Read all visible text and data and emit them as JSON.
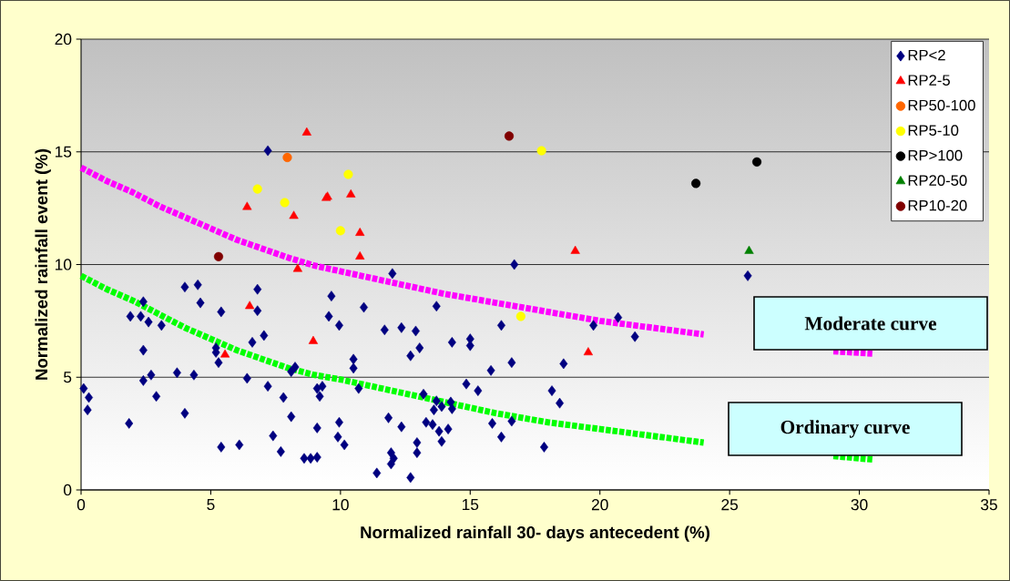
{
  "chart_data": {
    "type": "scatter",
    "xlabel": "Normalized rainfall 30- days antecedent (%)",
    "ylabel": "Normalized rainfall event (%)",
    "xlim": [
      0,
      35
    ],
    "ylim": [
      0,
      20
    ],
    "xticks": [
      0,
      5,
      10,
      15,
      20,
      25,
      30,
      35
    ],
    "yticks": [
      0,
      5,
      10,
      15,
      20
    ],
    "grid": "y",
    "legend": "top right",
    "annotations": [
      "Moderate curve",
      "Ordinary curve"
    ],
    "series": [
      {
        "name": "RP<2",
        "color": "#000080",
        "marker": "diamond",
        "x": [
          0.1,
          0.3,
          0.25,
          1.9,
          1.85,
          2.3,
          2.4,
          2.6,
          3.1,
          2.4,
          2.4,
          2.7,
          2.9,
          3.7,
          4.0,
          4.5,
          4.6,
          4.35,
          4.0,
          5.4,
          5.2,
          5.2,
          5.3,
          5.4,
          6.1,
          6.4,
          6.8,
          6.8,
          7.05,
          6.6,
          7.2,
          7.8,
          8.1,
          7.4,
          7.7,
          8.1,
          8.25,
          8.6,
          8.85,
          9.1,
          9.1,
          9.1,
          9.3,
          9.2,
          9.65,
          9.55,
          9.95,
          9.95,
          9.9,
          10.15,
          7.2,
          16.7,
          12.0,
          10.9,
          13.7,
          11.7,
          12.35,
          12.9,
          16.2,
          19.75,
          14.3,
          15.0,
          15.0,
          13.05,
          12.7,
          10.5,
          10.5,
          16.6,
          18.6,
          15.8,
          14.85,
          15.3,
          18.15,
          18.45,
          10.7,
          13.2,
          13.6,
          13.9,
          13.7,
          14.3,
          14.25,
          11.85,
          12.35,
          13.3,
          13.55,
          13.8,
          14.15,
          13.9,
          12.95,
          12.95,
          15.85,
          16.6,
          16.2,
          17.85,
          11.95,
          12.05,
          11.95,
          11.4,
          12.7,
          20.7,
          21.35,
          25.7
        ],
        "values": [
          4.5,
          4.1,
          3.55,
          7.7,
          2.95,
          7.7,
          8.35,
          7.45,
          7.3,
          6.2,
          4.85,
          5.1,
          4.15,
          5.2,
          9.0,
          9.1,
          8.3,
          5.1,
          3.4,
          7.9,
          6.3,
          6.1,
          5.65,
          1.9,
          2.0,
          4.95,
          8.9,
          7.95,
          6.85,
          6.55,
          4.6,
          4.1,
          3.25,
          2.4,
          1.7,
          5.25,
          5.45,
          1.4,
          1.4,
          1.45,
          2.75,
          4.5,
          4.6,
          4.15,
          8.6,
          7.7,
          7.3,
          3.0,
          2.35,
          2.0,
          15.05,
          10.0,
          9.6,
          8.1,
          8.15,
          7.1,
          7.2,
          7.05,
          7.3,
          7.3,
          6.55,
          6.7,
          6.4,
          6.3,
          5.95,
          5.8,
          5.4,
          5.65,
          5.6,
          5.3,
          4.7,
          4.4,
          4.4,
          3.85,
          4.5,
          4.25,
          3.55,
          3.7,
          3.95,
          3.6,
          3.9,
          3.2,
          2.8,
          3.0,
          2.9,
          2.6,
          2.7,
          2.15,
          2.1,
          1.65,
          2.95,
          3.05,
          2.35,
          1.9,
          1.65,
          1.4,
          1.15,
          0.75,
          0.55,
          7.65,
          6.8,
          9.5
        ]
      },
      {
        "name": "RP2-5",
        "color": "#ff0000",
        "marker": "triangle",
        "x": [
          8.7,
          6.4,
          8.2,
          9.45,
          9.5,
          10.4,
          10.75,
          10.75,
          8.35,
          19.05,
          6.5,
          5.55,
          8.95,
          19.55
        ],
        "values": [
          15.85,
          12.55,
          12.15,
          12.95,
          13.0,
          13.1,
          11.4,
          10.35,
          9.8,
          10.6,
          8.15,
          6.0,
          6.6,
          6.1
        ]
      },
      {
        "name": "RP50-100",
        "color": "#ff6600",
        "marker": "circle",
        "x": [
          7.95
        ],
        "values": [
          14.75
        ]
      },
      {
        "name": "RP5-10",
        "color": "#ffff00",
        "marker": "circle",
        "x": [
          6.8,
          7.85,
          10.3,
          10.0,
          17.75,
          16.95
        ],
        "values": [
          13.35,
          12.75,
          14.0,
          11.5,
          15.05,
          7.7
        ]
      },
      {
        "name": "RP>100",
        "color": "#000000",
        "marker": "circle",
        "x": [
          26.05,
          23.7
        ],
        "values": [
          14.55,
          13.6
        ]
      },
      {
        "name": "RP20-50",
        "color": "#008000",
        "marker": "triangle",
        "x": [
          25.75
        ],
        "values": [
          10.6
        ]
      },
      {
        "name": "RP10-20",
        "color": "#800000",
        "marker": "circle",
        "x": [
          16.5,
          5.3
        ],
        "values": [
          15.7,
          10.35
        ]
      },
      {
        "type": "line",
        "color": "#ff00ff",
        "line_style": "dashed",
        "x": [
          0,
          1,
          2,
          3,
          4,
          5,
          6,
          7,
          8,
          9,
          10,
          12,
          14,
          16,
          18,
          20,
          22,
          24,
          26,
          29,
          30.5
        ],
        "values": [
          14.3,
          13.7,
          13.2,
          12.6,
          12.1,
          11.6,
          11.1,
          10.7,
          10.3,
          9.95,
          9.7,
          9.2,
          8.7,
          8.3,
          7.9,
          7.5,
          7.2,
          6.9,
          null,
          6.15,
          6.05
        ]
      },
      {
        "type": "line",
        "color": "#00ff00",
        "line_style": "dashed",
        "x": [
          0,
          1,
          2,
          3,
          4,
          5,
          6,
          7,
          8,
          9,
          10,
          12,
          14,
          16,
          18,
          20,
          22,
          24,
          26,
          29,
          30.5
        ],
        "values": [
          9.5,
          8.9,
          8.4,
          7.8,
          7.2,
          6.7,
          6.2,
          5.8,
          5.4,
          5.1,
          4.9,
          4.4,
          3.9,
          3.4,
          3.0,
          2.7,
          2.4,
          2.1,
          null,
          1.5,
          1.35
        ]
      }
    ]
  }
}
